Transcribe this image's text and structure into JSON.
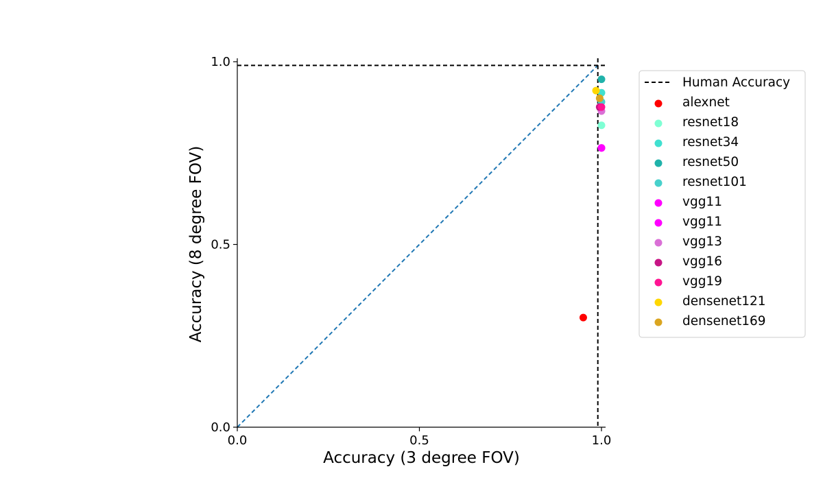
{
  "chart_data": {
    "type": "scatter",
    "xlabel": "Accuracy (3 degree FOV)",
    "ylabel": "Accuracy (8 degree FOV)",
    "xlim": [
      0.0,
      1.0
    ],
    "ylim": [
      0.0,
      1.0
    ],
    "x_ticks": [
      "0.0",
      "0.5",
      "1.0"
    ],
    "y_ticks": [
      "0.0",
      "0.5",
      "1.0"
    ],
    "grid": false,
    "legend_position": "outside-right",
    "reference_lines": [
      {
        "name": "Human Accuracy",
        "style": "dashed",
        "color": "#000000",
        "x": 0.99,
        "y": 0.99
      },
      {
        "name": "",
        "style": "dashed",
        "color": "#1f77b4",
        "kind": "diagonal-identity"
      }
    ],
    "series": [
      {
        "name": "alexnet",
        "color": "#ff0000",
        "x": 0.95,
        "y": 0.3
      },
      {
        "name": "resnet18",
        "color": "#7fffd4",
        "x": 1.0,
        "y": 0.826
      },
      {
        "name": "resnet34",
        "color": "#40e0d0",
        "x": 1.0,
        "y": 0.915
      },
      {
        "name": "resnet50",
        "color": "#20b2aa",
        "x": 1.0,
        "y": 0.952
      },
      {
        "name": "resnet101",
        "color": "#48d1cc",
        "x": 1.0,
        "y": 0.89
      },
      {
        "name": "vgg11",
        "color": "#ff00ff",
        "x": 1.0,
        "y": 0.764
      },
      {
        "name": "vgg11",
        "color": "#ff00ff",
        "x": 1.0,
        "y": 0.764
      },
      {
        "name": "vgg13",
        "color": "#da70d6",
        "x": 1.0,
        "y": 0.865
      },
      {
        "name": "vgg16",
        "color": "#c71585",
        "x": 0.995,
        "y": 0.876
      },
      {
        "name": "vgg19",
        "color": "#ff1493",
        "x": 1.0,
        "y": 0.876
      },
      {
        "name": "densenet121",
        "color": "#ffd700",
        "x": 0.985,
        "y": 0.921
      },
      {
        "name": "densenet169",
        "color": "#daa520",
        "x": 0.995,
        "y": 0.9
      }
    ]
  }
}
